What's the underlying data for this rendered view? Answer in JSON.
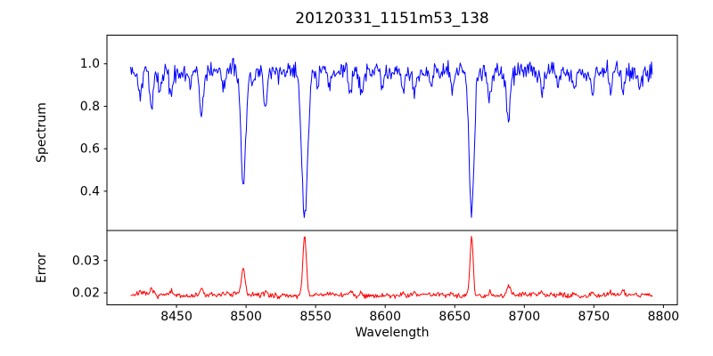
{
  "figure": {
    "background": "#ffffff",
    "spine_color": "#000000",
    "tick_color": "#000000"
  },
  "chart_data": [
    {
      "type": "line",
      "name": "spectrum",
      "title": "20120331_1151m53_138",
      "ylabel": "Spectrum",
      "line_color": "#0000ff",
      "xlim": [
        8400,
        8810
      ],
      "ylim": [
        0.215,
        1.135
      ],
      "yticks": {
        "values": [
          0.4,
          0.6,
          0.8,
          1.0
        ],
        "labels": [
          "0.4",
          "0.6",
          "0.8",
          "1.0"
        ]
      },
      "grid": false,
      "legend": false,
      "x_start": 8417,
      "x_end": 8792,
      "n_points": 650,
      "continuum": 0.965,
      "noise_sigma": 0.021,
      "wiggle": {
        "amp": 0.006,
        "period": 55
      },
      "seed": 42,
      "absorption_lines": [
        {
          "center": 8424.0,
          "depth": 0.12,
          "sigma": 1.2
        },
        {
          "center": 8432.0,
          "depth": 0.18,
          "sigma": 1.3
        },
        {
          "center": 8438.0,
          "depth": 0.1,
          "sigma": 1.0
        },
        {
          "center": 8446.0,
          "depth": 0.14,
          "sigma": 1.1
        },
        {
          "center": 8460.0,
          "depth": 0.09,
          "sigma": 1.0
        },
        {
          "center": 8468.0,
          "depth": 0.2,
          "sigma": 1.3
        },
        {
          "center": 8484.0,
          "depth": 0.09,
          "sigma": 1.0
        },
        {
          "center": 8498.0,
          "depth": 0.55,
          "sigma": 1.7
        },
        {
          "center": 8505.0,
          "depth": 0.08,
          "sigma": 1.0
        },
        {
          "center": 8514.0,
          "depth": 0.15,
          "sigma": 1.2
        },
        {
          "center": 8542.1,
          "depth": 0.71,
          "sigma": 2.1
        },
        {
          "center": 8551.0,
          "depth": 0.07,
          "sigma": 1.0
        },
        {
          "center": 8560.0,
          "depth": 0.07,
          "sigma": 1.0
        },
        {
          "center": 8575.0,
          "depth": 0.1,
          "sigma": 1.1
        },
        {
          "center": 8583.0,
          "depth": 0.11,
          "sigma": 1.1
        },
        {
          "center": 8598.0,
          "depth": 0.09,
          "sigma": 1.0
        },
        {
          "center": 8613.0,
          "depth": 0.11,
          "sigma": 1.0
        },
        {
          "center": 8621.0,
          "depth": 0.11,
          "sigma": 1.0
        },
        {
          "center": 8633.0,
          "depth": 0.07,
          "sigma": 1.0
        },
        {
          "center": 8648.0,
          "depth": 0.1,
          "sigma": 1.0
        },
        {
          "center": 8662.1,
          "depth": 0.67,
          "sigma": 1.8
        },
        {
          "center": 8675.0,
          "depth": 0.12,
          "sigma": 1.0
        },
        {
          "center": 8688.6,
          "depth": 0.22,
          "sigma": 1.4
        },
        {
          "center": 8713.0,
          "depth": 0.11,
          "sigma": 1.1
        },
        {
          "center": 8724.0,
          "depth": 0.08,
          "sigma": 1.0
        },
        {
          "center": 8736.0,
          "depth": 0.1,
          "sigma": 1.0
        },
        {
          "center": 8749.0,
          "depth": 0.12,
          "sigma": 1.1
        },
        {
          "center": 8762.0,
          "depth": 0.1,
          "sigma": 1.0
        },
        {
          "center": 8771.0,
          "depth": 0.11,
          "sigma": 1.0
        },
        {
          "center": 8783.0,
          "depth": 0.08,
          "sigma": 1.0
        }
      ]
    },
    {
      "type": "line",
      "name": "error",
      "ylabel": "Error",
      "xlabel": "Wavelength",
      "line_color": "#ff0000",
      "xlim": [
        8400,
        8810
      ],
      "ylim": [
        0.0163,
        0.0393
      ],
      "yticks": {
        "values": [
          0.02,
          0.03
        ],
        "labels": [
          "0.02",
          "0.03"
        ]
      },
      "xticks": {
        "values": [
          8450,
          8500,
          8550,
          8600,
          8650,
          8700,
          8750,
          8800
        ],
        "labels": [
          "8450",
          "8500",
          "8550",
          "8600",
          "8650",
          "8700",
          "8750",
          "8800"
        ]
      },
      "grid": false,
      "legend": false,
      "x_start": 8417,
      "x_end": 8792,
      "n_points": 650,
      "baseline": 0.0193,
      "noise_sigma": 0.00042,
      "wiggle": {
        "amp": 0.0002,
        "period": 70
      },
      "seed": 7,
      "emission_peaks": [
        {
          "center": 8424.0,
          "height": 0.0012,
          "sigma": 1.0
        },
        {
          "center": 8432.0,
          "height": 0.0015,
          "sigma": 1.1
        },
        {
          "center": 8446.0,
          "height": 0.0012,
          "sigma": 1.0
        },
        {
          "center": 8468.0,
          "height": 0.0022,
          "sigma": 1.1
        },
        {
          "center": 8484.0,
          "height": 0.0008,
          "sigma": 1.0
        },
        {
          "center": 8498.0,
          "height": 0.0082,
          "sigma": 1.3
        },
        {
          "center": 8514.0,
          "height": 0.0013,
          "sigma": 1.0
        },
        {
          "center": 8542.1,
          "height": 0.0186,
          "sigma": 1.2
        },
        {
          "center": 8575.0,
          "height": 0.0008,
          "sigma": 1.0
        },
        {
          "center": 8583.0,
          "height": 0.0008,
          "sigma": 1.0
        },
        {
          "center": 8613.0,
          "height": 0.0008,
          "sigma": 1.0
        },
        {
          "center": 8621.0,
          "height": 0.0009,
          "sigma": 1.0
        },
        {
          "center": 8648.0,
          "height": 0.0008,
          "sigma": 1.0
        },
        {
          "center": 8662.1,
          "height": 0.0178,
          "sigma": 1.15
        },
        {
          "center": 8675.0,
          "height": 0.0012,
          "sigma": 1.0
        },
        {
          "center": 8688.6,
          "height": 0.0032,
          "sigma": 1.2
        },
        {
          "center": 8713.0,
          "height": 0.0008,
          "sigma": 1.0
        },
        {
          "center": 8736.0,
          "height": 0.0008,
          "sigma": 1.0
        },
        {
          "center": 8749.0,
          "height": 0.001,
          "sigma": 1.0
        },
        {
          "center": 8762.0,
          "height": 0.0009,
          "sigma": 1.0
        },
        {
          "center": 8771.0,
          "height": 0.0012,
          "sigma": 1.0
        }
      ]
    }
  ]
}
